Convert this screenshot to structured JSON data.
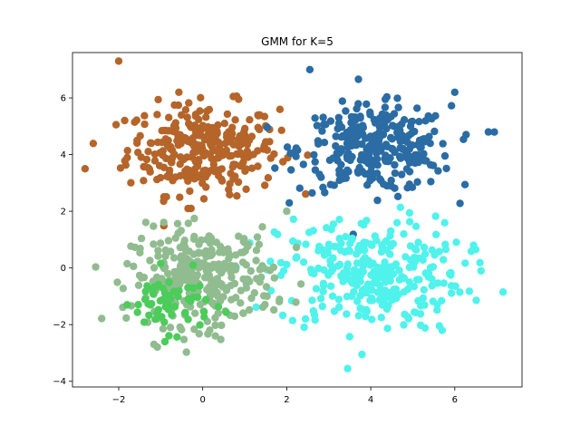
{
  "chart_data": {
    "type": "scatter",
    "title": "GMM for K=5",
    "xlabel": "",
    "ylabel": "",
    "xlim": [
      -3.1,
      7.6
    ],
    "ylim": [
      -4.2,
      7.6
    ],
    "xticks": [
      -2,
      0,
      2,
      4,
      6
    ],
    "yticks": [
      -4,
      -2,
      0,
      2,
      4,
      6
    ],
    "grid": false,
    "legend": "none",
    "clusters": [
      {
        "mean": [
          0.0,
          4.2
        ],
        "std": [
          0.9,
          0.8
        ],
        "count": 300,
        "color": "#b5652a"
      },
      {
        "mean": [
          4.1,
          4.2
        ],
        "std": [
          0.9,
          0.75
        ],
        "count": 300,
        "color": "#2a6ca3"
      },
      {
        "mean": [
          4.0,
          -0.2
        ],
        "std": [
          1.1,
          1.0
        ],
        "count": 300,
        "color": "#50f2ec"
      },
      {
        "mean": [
          0.0,
          -0.3
        ],
        "std": [
          0.85,
          0.85
        ],
        "count": 300,
        "color": "#90bc90"
      },
      {
        "mean": [
          -0.8,
          -1.2
        ],
        "std": [
          0.5,
          0.5
        ],
        "count": 60,
        "color": "#4ccc5a"
      }
    ],
    "points": [
      {
        "x": -2.0,
        "y": 7.3,
        "color": "#b5652a"
      },
      {
        "x": -2.8,
        "y": 3.5,
        "color": "#b5652a"
      },
      {
        "x": 7.15,
        "y": -0.85,
        "color": "#50f2ec"
      },
      {
        "x": 3.45,
        "y": -3.55,
        "color": "#50f2ec"
      },
      {
        "x": 2.55,
        "y": 7.0,
        "color": "#2a6ca3"
      },
      {
        "x": 6.0,
        "y": 6.2,
        "color": "#2a6ca3"
      },
      {
        "x": 6.8,
        "y": 4.8,
        "color": "#2a6ca3"
      },
      {
        "x": -0.9,
        "y": -2.6,
        "color": "#4ccc5a"
      },
      {
        "x": -1.8,
        "y": 0.15,
        "color": "#90bc90"
      },
      {
        "x": -1.8,
        "y": -1.3,
        "color": "#4ccc5a"
      },
      {
        "x": 0.3,
        "y": -2.4,
        "color": "#90bc90"
      },
      {
        "x": 5.7,
        "y": -2.2,
        "color": "#50f2ec"
      },
      {
        "x": 6.5,
        "y": 0.65,
        "color": "#50f2ec"
      },
      {
        "x": 2.0,
        "y": 2.0,
        "color": "#90bc90"
      }
    ]
  }
}
